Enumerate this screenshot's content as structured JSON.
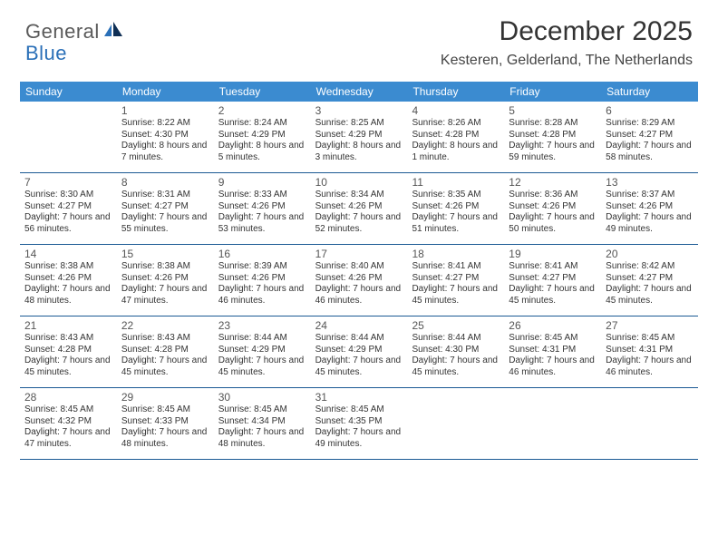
{
  "brand": {
    "word1": "General",
    "word2": "Blue"
  },
  "title": "December 2025",
  "location": "Kesteren, Gelderland, The Netherlands",
  "colors": {
    "header_bg": "#3b8bd0",
    "header_text": "#ffffff",
    "week_divider": "#1b5a94",
    "body_text": "#333333",
    "brand_gray": "#5a5a5a",
    "brand_blue": "#2b70b8",
    "background": "#ffffff"
  },
  "fonts": {
    "title_size_pt": 22,
    "location_size_pt": 12,
    "dayhead_size_pt": 9,
    "daynum_size_pt": 9,
    "cell_text_size_pt": 7.5
  },
  "day_headers": [
    "Sunday",
    "Monday",
    "Tuesday",
    "Wednesday",
    "Thursday",
    "Friday",
    "Saturday"
  ],
  "weeks": [
    [
      {
        "n": "",
        "sr": "",
        "ss": "",
        "dl": ""
      },
      {
        "n": "1",
        "sr": "Sunrise: 8:22 AM",
        "ss": "Sunset: 4:30 PM",
        "dl": "Daylight: 8 hours and 7 minutes."
      },
      {
        "n": "2",
        "sr": "Sunrise: 8:24 AM",
        "ss": "Sunset: 4:29 PM",
        "dl": "Daylight: 8 hours and 5 minutes."
      },
      {
        "n": "3",
        "sr": "Sunrise: 8:25 AM",
        "ss": "Sunset: 4:29 PM",
        "dl": "Daylight: 8 hours and 3 minutes."
      },
      {
        "n": "4",
        "sr": "Sunrise: 8:26 AM",
        "ss": "Sunset: 4:28 PM",
        "dl": "Daylight: 8 hours and 1 minute."
      },
      {
        "n": "5",
        "sr": "Sunrise: 8:28 AM",
        "ss": "Sunset: 4:28 PM",
        "dl": "Daylight: 7 hours and 59 minutes."
      },
      {
        "n": "6",
        "sr": "Sunrise: 8:29 AM",
        "ss": "Sunset: 4:27 PM",
        "dl": "Daylight: 7 hours and 58 minutes."
      }
    ],
    [
      {
        "n": "7",
        "sr": "Sunrise: 8:30 AM",
        "ss": "Sunset: 4:27 PM",
        "dl": "Daylight: 7 hours and 56 minutes."
      },
      {
        "n": "8",
        "sr": "Sunrise: 8:31 AM",
        "ss": "Sunset: 4:27 PM",
        "dl": "Daylight: 7 hours and 55 minutes."
      },
      {
        "n": "9",
        "sr": "Sunrise: 8:33 AM",
        "ss": "Sunset: 4:26 PM",
        "dl": "Daylight: 7 hours and 53 minutes."
      },
      {
        "n": "10",
        "sr": "Sunrise: 8:34 AM",
        "ss": "Sunset: 4:26 PM",
        "dl": "Daylight: 7 hours and 52 minutes."
      },
      {
        "n": "11",
        "sr": "Sunrise: 8:35 AM",
        "ss": "Sunset: 4:26 PM",
        "dl": "Daylight: 7 hours and 51 minutes."
      },
      {
        "n": "12",
        "sr": "Sunrise: 8:36 AM",
        "ss": "Sunset: 4:26 PM",
        "dl": "Daylight: 7 hours and 50 minutes."
      },
      {
        "n": "13",
        "sr": "Sunrise: 8:37 AM",
        "ss": "Sunset: 4:26 PM",
        "dl": "Daylight: 7 hours and 49 minutes."
      }
    ],
    [
      {
        "n": "14",
        "sr": "Sunrise: 8:38 AM",
        "ss": "Sunset: 4:26 PM",
        "dl": "Daylight: 7 hours and 48 minutes."
      },
      {
        "n": "15",
        "sr": "Sunrise: 8:38 AM",
        "ss": "Sunset: 4:26 PM",
        "dl": "Daylight: 7 hours and 47 minutes."
      },
      {
        "n": "16",
        "sr": "Sunrise: 8:39 AM",
        "ss": "Sunset: 4:26 PM",
        "dl": "Daylight: 7 hours and 46 minutes."
      },
      {
        "n": "17",
        "sr": "Sunrise: 8:40 AM",
        "ss": "Sunset: 4:26 PM",
        "dl": "Daylight: 7 hours and 46 minutes."
      },
      {
        "n": "18",
        "sr": "Sunrise: 8:41 AM",
        "ss": "Sunset: 4:27 PM",
        "dl": "Daylight: 7 hours and 45 minutes."
      },
      {
        "n": "19",
        "sr": "Sunrise: 8:41 AM",
        "ss": "Sunset: 4:27 PM",
        "dl": "Daylight: 7 hours and 45 minutes."
      },
      {
        "n": "20",
        "sr": "Sunrise: 8:42 AM",
        "ss": "Sunset: 4:27 PM",
        "dl": "Daylight: 7 hours and 45 minutes."
      }
    ],
    [
      {
        "n": "21",
        "sr": "Sunrise: 8:43 AM",
        "ss": "Sunset: 4:28 PM",
        "dl": "Daylight: 7 hours and 45 minutes."
      },
      {
        "n": "22",
        "sr": "Sunrise: 8:43 AM",
        "ss": "Sunset: 4:28 PM",
        "dl": "Daylight: 7 hours and 45 minutes."
      },
      {
        "n": "23",
        "sr": "Sunrise: 8:44 AM",
        "ss": "Sunset: 4:29 PM",
        "dl": "Daylight: 7 hours and 45 minutes."
      },
      {
        "n": "24",
        "sr": "Sunrise: 8:44 AM",
        "ss": "Sunset: 4:29 PM",
        "dl": "Daylight: 7 hours and 45 minutes."
      },
      {
        "n": "25",
        "sr": "Sunrise: 8:44 AM",
        "ss": "Sunset: 4:30 PM",
        "dl": "Daylight: 7 hours and 45 minutes."
      },
      {
        "n": "26",
        "sr": "Sunrise: 8:45 AM",
        "ss": "Sunset: 4:31 PM",
        "dl": "Daylight: 7 hours and 46 minutes."
      },
      {
        "n": "27",
        "sr": "Sunrise: 8:45 AM",
        "ss": "Sunset: 4:31 PM",
        "dl": "Daylight: 7 hours and 46 minutes."
      }
    ],
    [
      {
        "n": "28",
        "sr": "Sunrise: 8:45 AM",
        "ss": "Sunset: 4:32 PM",
        "dl": "Daylight: 7 hours and 47 minutes."
      },
      {
        "n": "29",
        "sr": "Sunrise: 8:45 AM",
        "ss": "Sunset: 4:33 PM",
        "dl": "Daylight: 7 hours and 48 minutes."
      },
      {
        "n": "30",
        "sr": "Sunrise: 8:45 AM",
        "ss": "Sunset: 4:34 PM",
        "dl": "Daylight: 7 hours and 48 minutes."
      },
      {
        "n": "31",
        "sr": "Sunrise: 8:45 AM",
        "ss": "Sunset: 4:35 PM",
        "dl": "Daylight: 7 hours and 49 minutes."
      },
      {
        "n": "",
        "sr": "",
        "ss": "",
        "dl": ""
      },
      {
        "n": "",
        "sr": "",
        "ss": "",
        "dl": ""
      },
      {
        "n": "",
        "sr": "",
        "ss": "",
        "dl": ""
      }
    ]
  ]
}
